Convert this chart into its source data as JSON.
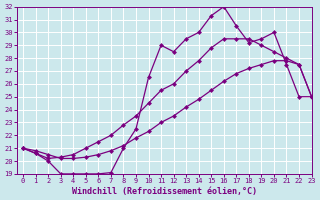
{
  "xlabel": "Windchill (Refroidissement éolien,°C)",
  "background_color": "#cce8ec",
  "line_color": "#7b0080",
  "grid_color": "#b8d8dc",
  "x": [
    0,
    1,
    2,
    3,
    4,
    5,
    6,
    7,
    8,
    9,
    10,
    11,
    12,
    13,
    14,
    15,
    16,
    17,
    18,
    19,
    20,
    21,
    22,
    23
  ],
  "line1": [
    21.0,
    20.6,
    20.0,
    19.0,
    19.0,
    19.0,
    19.0,
    19.1,
    21.0,
    22.5,
    26.5,
    29.0,
    28.5,
    29.5,
    30.0,
    31.3,
    32.0,
    30.5,
    29.2,
    29.5,
    30.0,
    27.5,
    25.0,
    25.0
  ],
  "line2": [
    21.0,
    20.6,
    20.2,
    20.3,
    20.5,
    21.0,
    21.5,
    22.0,
    22.8,
    23.5,
    24.5,
    25.5,
    26.0,
    27.0,
    27.8,
    28.8,
    29.5,
    29.5,
    29.5,
    29.0,
    28.5,
    28.0,
    27.5,
    25.0
  ],
  "line3": [
    21.0,
    20.8,
    20.5,
    20.2,
    20.2,
    20.3,
    20.5,
    20.8,
    21.2,
    21.8,
    22.3,
    23.0,
    23.5,
    24.2,
    24.8,
    25.5,
    26.2,
    26.8,
    27.2,
    27.5,
    27.8,
    27.8,
    27.5,
    25.0
  ],
  "ylim": [
    19,
    32
  ],
  "xlim": [
    -0.5,
    23
  ],
  "yticks": [
    19,
    20,
    21,
    22,
    23,
    24,
    25,
    26,
    27,
    28,
    29,
    30,
    31,
    32
  ],
  "xticks": [
    0,
    1,
    2,
    3,
    4,
    5,
    6,
    7,
    8,
    9,
    10,
    11,
    12,
    13,
    14,
    15,
    16,
    17,
    18,
    19,
    20,
    21,
    22,
    23
  ],
  "markersize": 2.5,
  "linewidth": 0.9,
  "tick_fontsize": 5.0,
  "label_fontsize": 6.0
}
